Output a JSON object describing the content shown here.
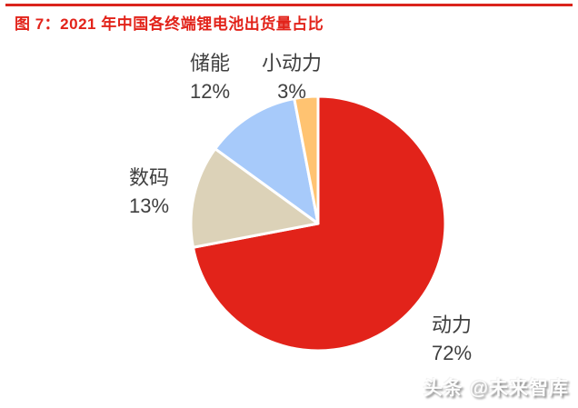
{
  "header": {
    "title": "图 7：2021 年中国各终端锂电池出货量占比",
    "accent_color": "#e2231a"
  },
  "watermark": {
    "text": "头条 @未来智库"
  },
  "chart_data": {
    "type": "pie",
    "title": "2021 年中国各终端锂电池出货量占比",
    "unit": "%",
    "start_angle_deg": -90,
    "direction": "clockwise",
    "legend_position": "none",
    "categories": [
      "动力",
      "数码",
      "储能",
      "小动力"
    ],
    "values": [
      72,
      13,
      12,
      3
    ],
    "slices": [
      {
        "name": "动力",
        "en": "power",
        "value": 72,
        "pct_label": "72%",
        "color": "#e2231a"
      },
      {
        "name": "数码",
        "en": "digital",
        "value": 13,
        "pct_label": "13%",
        "color": "#dcd2b8"
      },
      {
        "name": "储能",
        "en": "energy-storage",
        "value": 12,
        "pct_label": "12%",
        "color": "#a7cafa"
      },
      {
        "name": "小动力",
        "en": "small-power",
        "value": 3,
        "pct_label": "3%",
        "color": "#ffc371"
      }
    ],
    "slice_border_color": "#ffffff",
    "label_color": "#3f3f3f"
  }
}
